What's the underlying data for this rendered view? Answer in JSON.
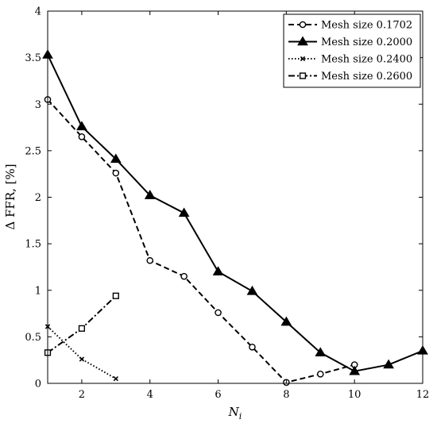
{
  "chart_data": {
    "type": "line",
    "xlabel": "N_i",
    "ylabel": "Δ FFR, [%]",
    "xlim": [
      1,
      12
    ],
    "ylim": [
      0,
      4
    ],
    "xticks": [
      2,
      4,
      6,
      8,
      10,
      12
    ],
    "yticks": [
      0,
      0.5,
      1,
      1.5,
      2,
      2.5,
      3,
      3.5,
      4
    ],
    "xtick_labels": [
      "2",
      "4",
      "6",
      "8",
      "10",
      "12"
    ],
    "ytick_labels": [
      "0",
      "0.5",
      "1",
      "1.5",
      "2",
      "2.5",
      "3",
      "3.5",
      "4"
    ],
    "grid": false,
    "legend_position": "top-right",
    "series": [
      {
        "name": "Mesh size 0.1702",
        "line_style": "dashed",
        "marker": "circle",
        "color": "#000000",
        "x": [
          1,
          2,
          3,
          4,
          5,
          6,
          7,
          8,
          9,
          10
        ],
        "y": [
          3.05,
          2.65,
          2.26,
          1.32,
          1.15,
          0.76,
          0.39,
          0.01,
          0.1,
          0.2
        ]
      },
      {
        "name": "Mesh size 0.2000",
        "line_style": "solid",
        "marker": "triangle",
        "color": "#000000",
        "x": [
          1,
          2,
          3,
          4,
          5,
          6,
          7,
          8,
          9,
          10,
          11,
          12
        ],
        "y": [
          3.53,
          2.76,
          2.41,
          2.02,
          1.83,
          1.2,
          0.99,
          0.66,
          0.33,
          0.13,
          0.2,
          0.35
        ]
      },
      {
        "name": "Mesh size 0.2400",
        "line_style": "dotted",
        "marker": "x",
        "color": "#000000",
        "x": [
          1,
          2,
          3
        ],
        "y": [
          0.61,
          0.26,
          0.05
        ]
      },
      {
        "name": "Mesh size 0.2600",
        "line_style": "dashdot",
        "marker": "square",
        "color": "#000000",
        "x": [
          1,
          2,
          3
        ],
        "y": [
          0.33,
          0.59,
          0.94
        ]
      }
    ]
  }
}
